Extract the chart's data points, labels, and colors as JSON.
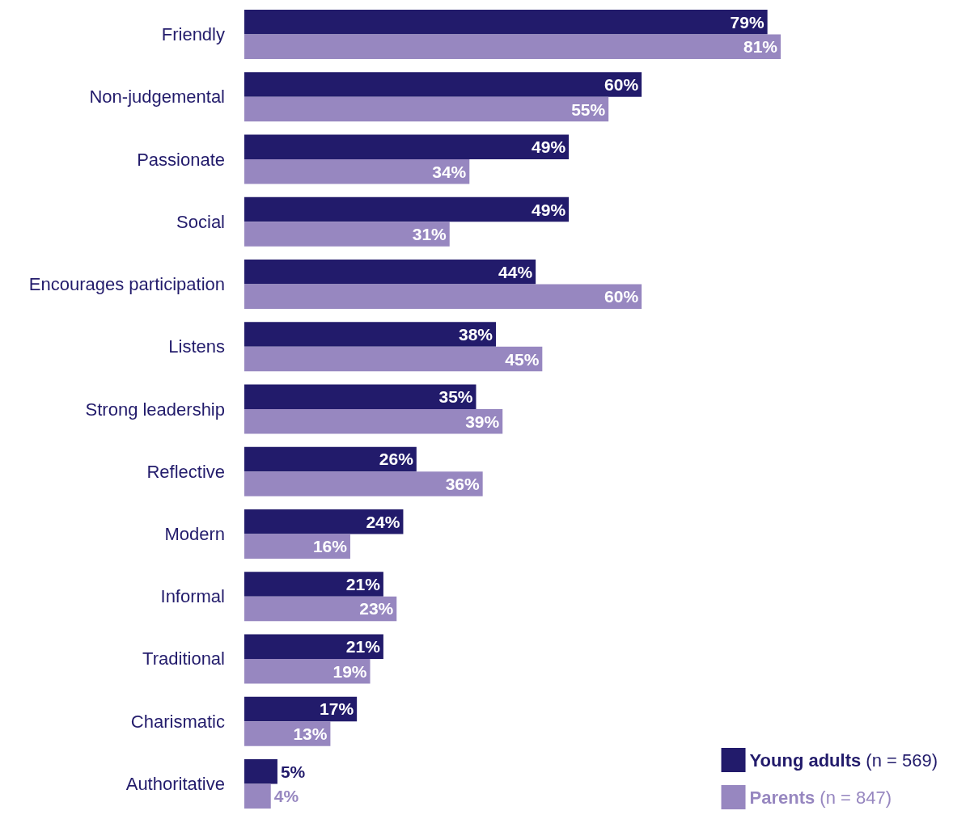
{
  "chart_data": {
    "type": "bar",
    "orientation": "horizontal",
    "categories": [
      "Friendly",
      "Non-judgemental",
      "Passionate",
      "Social",
      "Encourages participation",
      "Listens",
      "Strong leadership",
      "Reflective",
      "Modern",
      "Informal",
      "Traditional",
      "Charismatic",
      "Authoritative"
    ],
    "series": [
      {
        "name": "Young adults (n = 569)",
        "color": "#221b6b",
        "values": [
          79,
          60,
          49,
          49,
          44,
          38,
          35,
          26,
          24,
          21,
          21,
          17,
          5
        ],
        "value_labels": [
          "79%",
          "60%",
          "49%",
          "49%",
          "44%",
          "38%",
          "35%",
          "26%",
          "24%",
          "21%",
          "21%",
          "17%",
          "5%"
        ]
      },
      {
        "name": "Parents (n = 847)",
        "color": "#9787c0",
        "values": [
          81,
          55,
          34,
          31,
          60,
          45,
          39,
          36,
          16,
          23,
          19,
          13,
          4
        ],
        "value_labels": [
          "81%",
          "55%",
          "34%",
          "31%",
          "60%",
          "45%",
          "39%",
          "36%",
          "16%",
          "23%",
          "19%",
          "13%",
          "4%"
        ]
      }
    ],
    "legend": "bottom right"
  }
}
